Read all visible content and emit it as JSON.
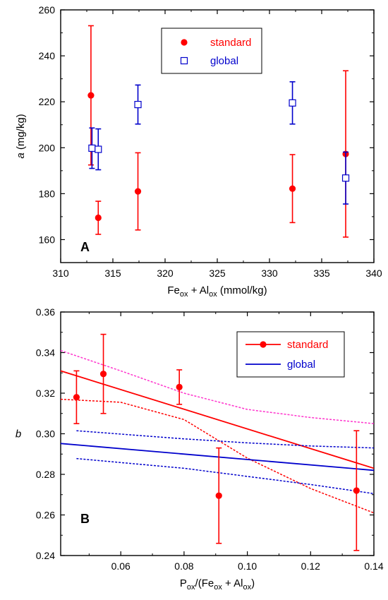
{
  "chart_data": [
    {
      "panel": "A",
      "type": "scatter",
      "xlabel": {
        "main": "Fe",
        "sub": "ox",
        "mid": " + Al",
        "sub2": "ox",
        "tail": " (mmol/kg)"
      },
      "ylabel": {
        "italic": "a",
        "rest": " (mg/kg)"
      },
      "xlim": [
        310,
        340
      ],
      "ylim": [
        150,
        260
      ],
      "xticks": [
        "310",
        "315",
        "320",
        "325",
        "330",
        "335",
        "340"
      ],
      "yticks": [
        "160",
        "180",
        "200",
        "220",
        "240",
        "260"
      ],
      "legend": {
        "position": "top-center"
      },
      "series": [
        {
          "name": "standard",
          "marker": "filled-circle",
          "color": "#ff0000",
          "points": [
            {
              "x": 312.9,
              "y": 222.8,
              "err": 30.3
            },
            {
              "x": 313.6,
              "y": 169.5,
              "err": 7.2
            },
            {
              "x": 317.4,
              "y": 181.0,
              "err": 16.8
            },
            {
              "x": 332.2,
              "y": 182.2,
              "err": 14.8
            },
            {
              "x": 337.3,
              "y": 197.3,
              "err": 36.2
            }
          ]
        },
        {
          "name": "global",
          "marker": "open-square",
          "color": "#0000cc",
          "points": [
            {
              "x": 313.0,
              "y": 199.8,
              "err": 8.8
            },
            {
              "x": 313.6,
              "y": 199.3,
              "err": 8.9
            },
            {
              "x": 317.4,
              "y": 218.8,
              "err": 8.5
            },
            {
              "x": 332.2,
              "y": 219.5,
              "err": 9.2
            },
            {
              "x": 337.3,
              "y": 186.8,
              "err": 11.3
            }
          ]
        }
      ]
    },
    {
      "panel": "B",
      "type": "scatter",
      "xlabel": {
        "main": "P",
        "sub": "ox",
        "mid": "/(Fe",
        "sub2": "ox",
        "mid2": " + Al",
        "sub3": "ox",
        "tail": ")"
      },
      "ylabel": {
        "italic": "b",
        "rest": ""
      },
      "xlim": [
        0.041,
        0.14
      ],
      "ylim": [
        0.24,
        0.36
      ],
      "xticks": [
        {
          "v": 0.06,
          "label": "0.06"
        },
        {
          "v": 0.08,
          "label": "0.08"
        },
        {
          "v": 0.1,
          "label": "0.10"
        },
        {
          "v": 0.12,
          "label": "0.12"
        },
        {
          "v": 0.14,
          "label": "0.14"
        }
      ],
      "yticks": [
        {
          "v": 0.24,
          "label": "0.24"
        },
        {
          "v": 0.26,
          "label": "0.26"
        },
        {
          "v": 0.28,
          "label": "0.28"
        },
        {
          "v": 0.3,
          "label": "0.30"
        },
        {
          "v": 0.32,
          "label": "0.32"
        },
        {
          "v": 0.34,
          "label": "0.34"
        },
        {
          "v": 0.36,
          "label": "0.36"
        }
      ],
      "legend": {
        "position": "top-right"
      },
      "series": [
        {
          "name": "standard",
          "marker": "filled-circle",
          "color": "#ff0000",
          "points": [
            {
              "x": 0.046,
              "y": 0.318,
              "err": 0.013
            },
            {
              "x": 0.0545,
              "y": 0.3295,
              "err": 0.0195
            },
            {
              "x": 0.0785,
              "y": 0.323,
              "err": 0.0085
            },
            {
              "x": 0.091,
              "y": 0.2695,
              "err": 0.0235
            },
            {
              "x": 0.1345,
              "y": 0.272,
              "err": 0.0295
            }
          ],
          "fit": [
            [
              0.041,
              0.331
            ],
            [
              0.14,
              0.283
            ]
          ],
          "band_upper": [
            [
              0.041,
              0.341
            ],
            [
              0.06,
              0.331
            ],
            [
              0.08,
              0.32
            ],
            [
              0.1,
              0.312
            ],
            [
              0.12,
              0.308
            ],
            [
              0.14,
              0.305
            ]
          ],
          "band_lower": [
            [
              0.041,
              0.317
            ],
            [
              0.06,
              0.3155
            ],
            [
              0.08,
              0.307
            ],
            [
              0.1,
              0.288
            ],
            [
              0.12,
              0.273
            ],
            [
              0.14,
              0.261
            ]
          ]
        },
        {
          "name": "global",
          "color": "#0000cc",
          "fit": [
            [
              0.041,
              0.2952
            ],
            [
              0.14,
              0.282
            ]
          ],
          "band_upper": [
            [
              0.046,
              0.3015
            ],
            [
              0.08,
              0.2975
            ],
            [
              0.1,
              0.2955
            ],
            [
              0.12,
              0.294
            ],
            [
              0.14,
              0.293
            ]
          ],
          "band_lower": [
            [
              0.046,
              0.2878
            ],
            [
              0.08,
              0.283
            ],
            [
              0.1,
              0.279
            ],
            [
              0.12,
              0.275
            ],
            [
              0.14,
              0.2705
            ]
          ]
        }
      ]
    }
  ]
}
